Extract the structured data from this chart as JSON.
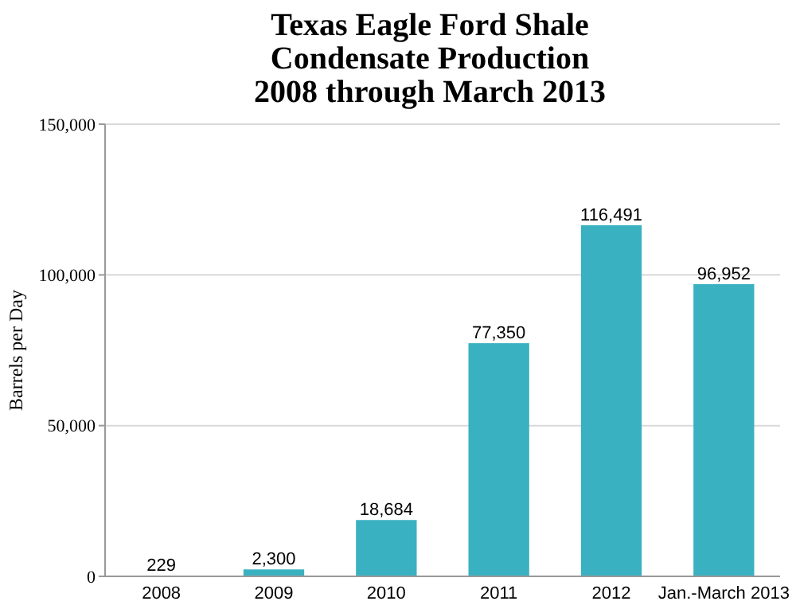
{
  "chart_data": {
    "type": "bar",
    "title": "Texas Eagle Ford Shale\nCondensate Production\n2008 through March 2013",
    "ylabel": "Barrels per Day",
    "categories": [
      "2008",
      "2009",
      "2010",
      "2011",
      "2012",
      "Jan.-March 2013"
    ],
    "values": [
      229,
      2300,
      18684,
      77350,
      116491,
      96952
    ],
    "value_labels": [
      "229",
      "2,300",
      "18,684",
      "77,350",
      "116,491",
      "96,952"
    ],
    "color": "#3ab1c1",
    "ylim": [
      0,
      150000
    ],
    "yticks": [
      0,
      {
        "value": 50000,
        "label": "50,000"
      },
      {
        "value": 100000,
        "label": "100,000"
      },
      {
        "value": 150000,
        "label": "150,000"
      }
    ],
    "grid": "y"
  }
}
